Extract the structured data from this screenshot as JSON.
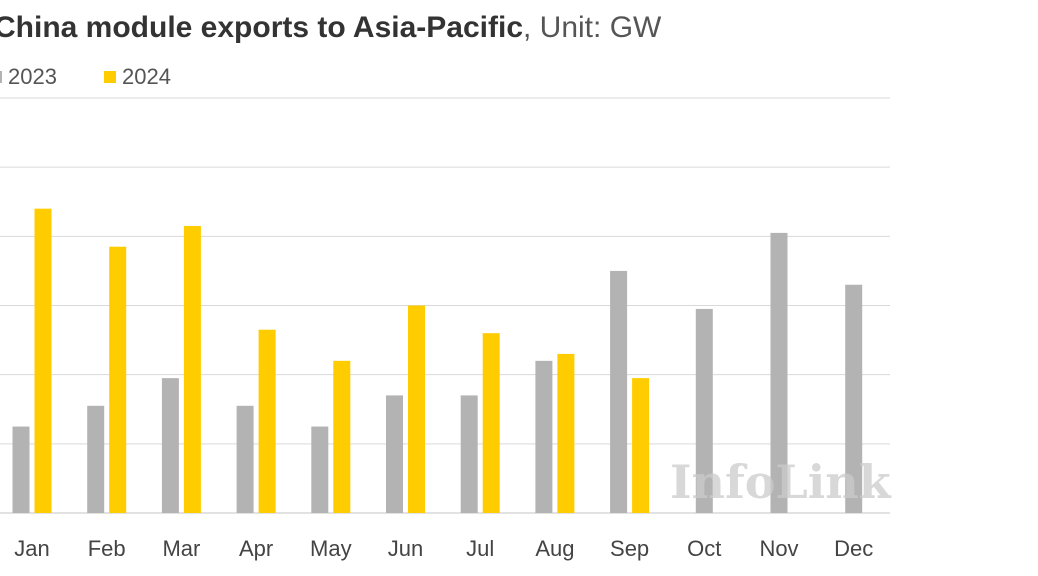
{
  "chart_data": {
    "type": "bar",
    "title": "China module exports to Asia-Pacific",
    "unit_label": ", Unit: GW",
    "categories": [
      "Jan",
      "Feb",
      "Mar",
      "Apr",
      "May",
      "Jun",
      "Jul",
      "Aug",
      "Sep",
      "Oct",
      "Nov",
      "Dec"
    ],
    "series": [
      {
        "name": "2023",
        "color": "#b3b3b3",
        "values": [
          1.25,
          1.55,
          1.95,
          1.55,
          1.25,
          1.7,
          1.7,
          2.2,
          3.5,
          2.95,
          4.05,
          3.3
        ]
      },
      {
        "name": "2024",
        "color": "#ffcc00",
        "values": [
          4.4,
          3.85,
          4.15,
          2.65,
          2.2,
          3.0,
          2.6,
          2.3,
          1.95,
          null,
          null,
          null
        ]
      }
    ],
    "ylim": [
      0,
      6
    ],
    "gridlines": [
      0,
      1,
      2,
      3,
      4,
      5,
      6
    ],
    "grid": true,
    "legend_position": "top-left",
    "watermark": "InfoLink"
  }
}
